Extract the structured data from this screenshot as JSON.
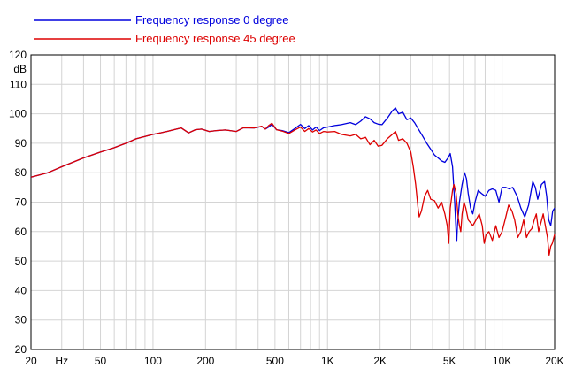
{
  "chart_data": {
    "type": "line",
    "title": "",
    "xlabel": "",
    "ylabel": "dB",
    "x_scale": "log",
    "xlim": [
      20,
      20000
    ],
    "ylim": [
      20,
      120
    ],
    "grid": true,
    "legend_position": "top-left",
    "x_tick_labels": [
      "20",
      "Hz",
      "50",
      "100",
      "200",
      "500",
      "1K",
      "2K",
      "5K",
      "10K",
      "20K"
    ],
    "y_tick_labels": [
      "20",
      "30",
      "40",
      "50",
      "60",
      "70",
      "80",
      "90",
      "100",
      "110",
      "120"
    ],
    "colors": {
      "grid": "#d4d4d4",
      "axis": "#000000"
    },
    "series": [
      {
        "name": "Frequency response 0 degree",
        "color": "#0000dd",
        "points": [
          [
            20,
            78.5
          ],
          [
            25,
            80
          ],
          [
            30,
            82
          ],
          [
            40,
            85
          ],
          [
            50,
            87
          ],
          [
            60,
            88.5
          ],
          [
            70,
            90
          ],
          [
            80,
            91.5
          ],
          [
            90,
            92.3
          ],
          [
            100,
            93
          ],
          [
            110,
            93.5
          ],
          [
            120,
            94
          ],
          [
            130,
            94.5
          ],
          [
            145,
            95.2
          ],
          [
            160,
            93.5
          ],
          [
            175,
            94.6
          ],
          [
            190,
            94.8
          ],
          [
            210,
            94
          ],
          [
            230,
            94.3
          ],
          [
            260,
            94.5
          ],
          [
            300,
            94
          ],
          [
            330,
            95.3
          ],
          [
            380,
            95.2
          ],
          [
            420,
            95.7
          ],
          [
            440,
            94.8
          ],
          [
            460,
            95.5
          ],
          [
            480,
            96.4
          ],
          [
            510,
            94.6
          ],
          [
            550,
            94.3
          ],
          [
            600,
            93.6
          ],
          [
            650,
            95
          ],
          [
            700,
            96.4
          ],
          [
            740,
            95
          ],
          [
            780,
            96
          ],
          [
            820,
            94.5
          ],
          [
            860,
            95.5
          ],
          [
            900,
            94.3
          ],
          [
            950,
            95.3
          ],
          [
            1000,
            95.5
          ],
          [
            1100,
            96
          ],
          [
            1200,
            96.3
          ],
          [
            1350,
            97
          ],
          [
            1450,
            96.3
          ],
          [
            1550,
            97.5
          ],
          [
            1650,
            99
          ],
          [
            1750,
            98.3
          ],
          [
            1850,
            97
          ],
          [
            1950,
            96.5
          ],
          [
            2050,
            96.3
          ],
          [
            2200,
            98.5
          ],
          [
            2350,
            101
          ],
          [
            2450,
            102
          ],
          [
            2550,
            100
          ],
          [
            2700,
            100.5
          ],
          [
            2850,
            98
          ],
          [
            3000,
            98.6
          ],
          [
            3150,
            97
          ],
          [
            3300,
            95
          ],
          [
            3500,
            92.5
          ],
          [
            3700,
            90
          ],
          [
            3900,
            88
          ],
          [
            4100,
            86
          ],
          [
            4300,
            85
          ],
          [
            4500,
            84
          ],
          [
            4700,
            83.5
          ],
          [
            4900,
            85
          ],
          [
            5050,
            86.5
          ],
          [
            5200,
            82
          ],
          [
            5350,
            70
          ],
          [
            5450,
            60
          ],
          [
            5500,
            57
          ],
          [
            5550,
            62
          ],
          [
            5700,
            70
          ],
          [
            5900,
            76
          ],
          [
            6100,
            80
          ],
          [
            6250,
            78
          ],
          [
            6400,
            73
          ],
          [
            6600,
            68
          ],
          [
            6800,
            66
          ],
          [
            7000,
            70
          ],
          [
            7300,
            74
          ],
          [
            7600,
            73
          ],
          [
            8000,
            72
          ],
          [
            8400,
            74
          ],
          [
            8800,
            74.5
          ],
          [
            9200,
            74
          ],
          [
            9600,
            70
          ],
          [
            10000,
            75
          ],
          [
            10500,
            75
          ],
          [
            11000,
            74.5
          ],
          [
            11500,
            75
          ],
          [
            12200,
            72
          ],
          [
            12800,
            68
          ],
          [
            13500,
            65
          ],
          [
            14200,
            69
          ],
          [
            15000,
            77
          ],
          [
            15500,
            75
          ],
          [
            16000,
            71
          ],
          [
            16800,
            76
          ],
          [
            17500,
            77
          ],
          [
            18000,
            72
          ],
          [
            18500,
            64
          ],
          [
            19000,
            62
          ],
          [
            19500,
            67
          ],
          [
            20000,
            68
          ]
        ]
      },
      {
        "name": "Frequency response 45 degree",
        "color": "#dd0000",
        "points": [
          [
            20,
            78.5
          ],
          [
            25,
            80
          ],
          [
            30,
            82
          ],
          [
            40,
            85
          ],
          [
            50,
            87
          ],
          [
            60,
            88.5
          ],
          [
            70,
            90
          ],
          [
            80,
            91.5
          ],
          [
            90,
            92.3
          ],
          [
            100,
            93
          ],
          [
            110,
            93.5
          ],
          [
            120,
            94
          ],
          [
            130,
            94.5
          ],
          [
            145,
            95.2
          ],
          [
            160,
            93.5
          ],
          [
            175,
            94.6
          ],
          [
            190,
            94.8
          ],
          [
            210,
            94
          ],
          [
            230,
            94.3
          ],
          [
            260,
            94.5
          ],
          [
            300,
            94
          ],
          [
            330,
            95.3
          ],
          [
            380,
            95.2
          ],
          [
            420,
            95.8
          ],
          [
            440,
            94.8
          ],
          [
            460,
            96
          ],
          [
            480,
            96.8
          ],
          [
            510,
            94.6
          ],
          [
            550,
            94.1
          ],
          [
            600,
            93.3
          ],
          [
            650,
            94.5
          ],
          [
            700,
            95.5
          ],
          [
            740,
            94
          ],
          [
            780,
            95
          ],
          [
            820,
            93.8
          ],
          [
            860,
            94.5
          ],
          [
            900,
            93.3
          ],
          [
            950,
            94
          ],
          [
            1000,
            93.8
          ],
          [
            1100,
            94
          ],
          [
            1200,
            93
          ],
          [
            1350,
            92.5
          ],
          [
            1450,
            93
          ],
          [
            1550,
            91.5
          ],
          [
            1650,
            92
          ],
          [
            1750,
            89.5
          ],
          [
            1850,
            91
          ],
          [
            1950,
            89
          ],
          [
            2050,
            89.3
          ],
          [
            2200,
            91.5
          ],
          [
            2350,
            93
          ],
          [
            2450,
            94
          ],
          [
            2550,
            91
          ],
          [
            2700,
            91.5
          ],
          [
            2850,
            90
          ],
          [
            3000,
            87
          ],
          [
            3100,
            82
          ],
          [
            3200,
            76
          ],
          [
            3300,
            68
          ],
          [
            3350,
            65
          ],
          [
            3450,
            67
          ],
          [
            3600,
            72
          ],
          [
            3750,
            74
          ],
          [
            3900,
            71
          ],
          [
            4100,
            70.5
          ],
          [
            4300,
            68
          ],
          [
            4500,
            70
          ],
          [
            4700,
            66
          ],
          [
            4850,
            62
          ],
          [
            4950,
            56
          ],
          [
            5050,
            68
          ],
          [
            5200,
            74
          ],
          [
            5300,
            76
          ],
          [
            5450,
            73
          ],
          [
            5600,
            65
          ],
          [
            5700,
            62
          ],
          [
            5800,
            60
          ],
          [
            5900,
            66
          ],
          [
            6050,
            70
          ],
          [
            6200,
            68
          ],
          [
            6400,
            64
          ],
          [
            6600,
            63
          ],
          [
            6800,
            62
          ],
          [
            7100,
            64
          ],
          [
            7400,
            66
          ],
          [
            7700,
            62
          ],
          [
            7900,
            56
          ],
          [
            8100,
            59
          ],
          [
            8400,
            60
          ],
          [
            8800,
            57
          ],
          [
            9200,
            62
          ],
          [
            9600,
            58
          ],
          [
            10000,
            60
          ],
          [
            10500,
            65
          ],
          [
            10900,
            69
          ],
          [
            11400,
            67
          ],
          [
            11800,
            64
          ],
          [
            12300,
            58
          ],
          [
            12800,
            60
          ],
          [
            13300,
            64
          ],
          [
            13800,
            58
          ],
          [
            14300,
            60
          ],
          [
            14800,
            61
          ],
          [
            15300,
            64
          ],
          [
            15700,
            66
          ],
          [
            16200,
            60
          ],
          [
            16700,
            63
          ],
          [
            17200,
            66
          ],
          [
            17700,
            62
          ],
          [
            18200,
            58
          ],
          [
            18600,
            52
          ],
          [
            19000,
            55
          ],
          [
            19400,
            56
          ],
          [
            20000,
            59
          ]
        ]
      }
    ]
  }
}
